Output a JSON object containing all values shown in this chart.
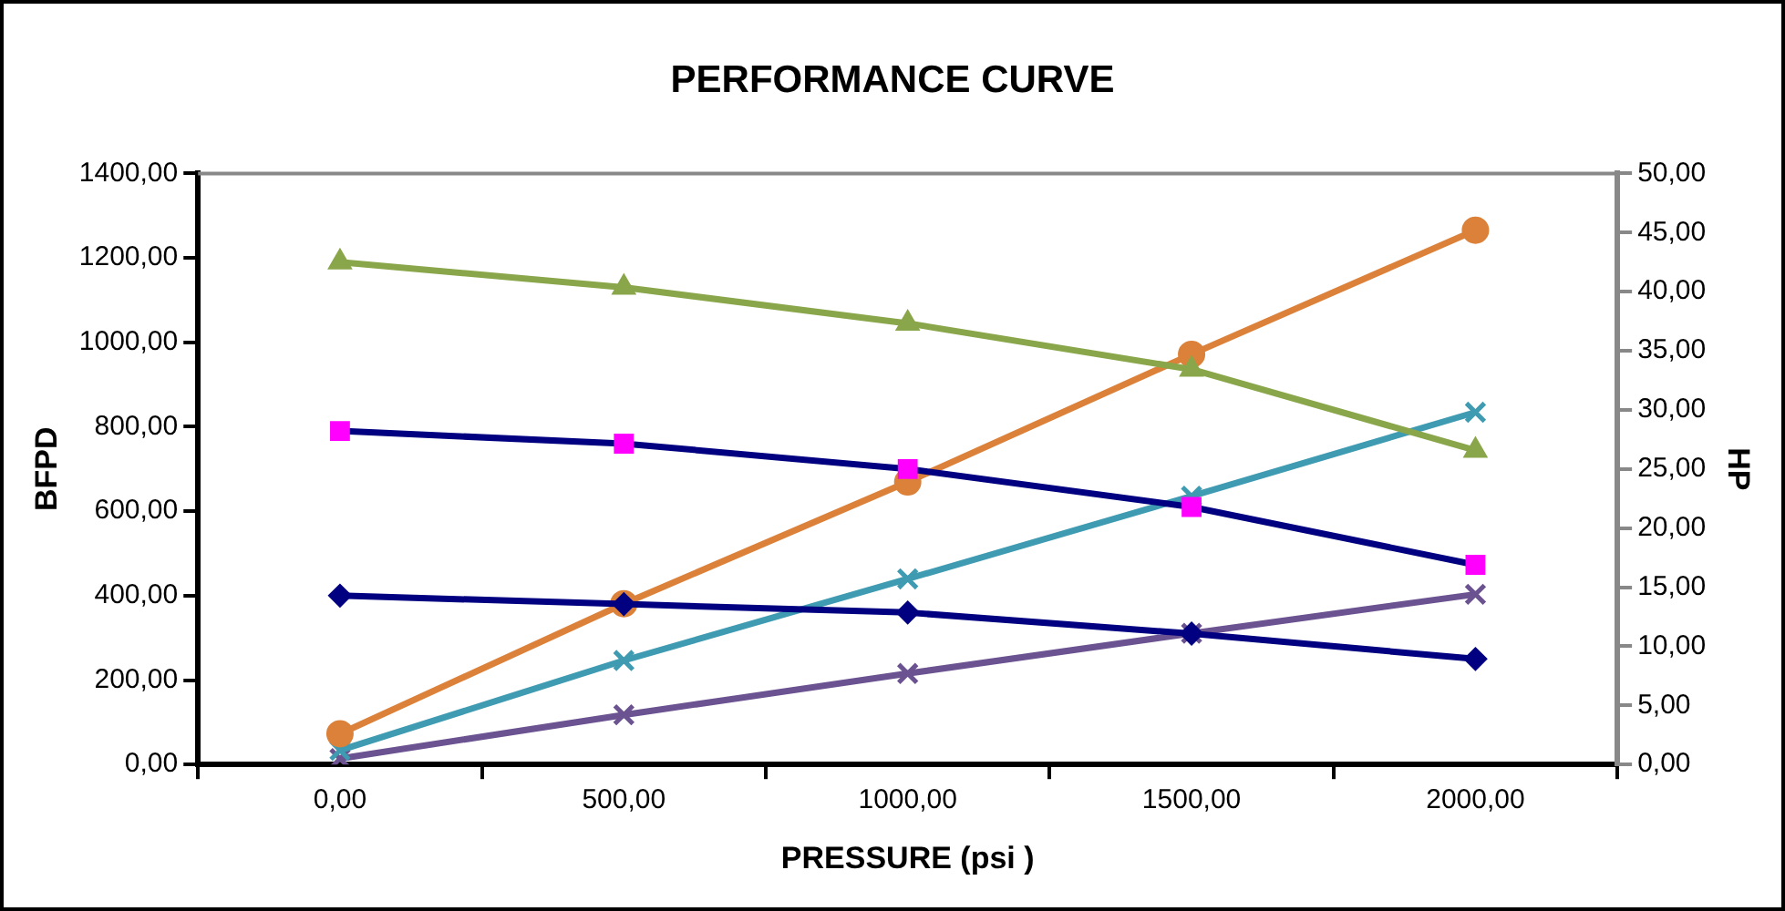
{
  "chart_data": {
    "type": "line",
    "title": "PERFORMANCE CURVE",
    "xlabel": "PRESSURE (psi )",
    "ylabel": "BFPD",
    "y2label": "HP",
    "categories": [
      "0,00",
      "500,00",
      "1000,00",
      "1500,00",
      "2000,00"
    ],
    "series": [
      {
        "color": "#8aa64a",
        "marker": "triangle",
        "values": [
          1190,
          1130,
          1045,
          936,
          744
        ]
      },
      {
        "color": "#000080",
        "colors": [
          "#ff00ff",
          "#ff00ff",
          "#ff00ff",
          "#ff00ff",
          "#ff00ff"
        ],
        "marker": "square",
        "values": [
          790,
          760,
          700,
          610,
          473
        ]
      },
      {
        "color": "#000080",
        "marker": "diamond",
        "values": [
          400,
          380,
          360,
          310,
          250
        ]
      },
      {
        "color": "#dc8139",
        "marker": "circle",
        "axis": "y2",
        "values": [
          2.6,
          13.6,
          23.9,
          34.7,
          45.2
        ]
      },
      {
        "color": "#3f9bb1",
        "marker": "cross",
        "axis": "y2",
        "values": [
          1.2,
          8.8,
          15.7,
          22.7,
          29.8
        ]
      },
      {
        "color": "#6b5290",
        "marker": "cross",
        "axis": "y2",
        "values": [
          0.5,
          4.2,
          7.7,
          11.1,
          14.4
        ]
      }
    ],
    "ylim": [
      0,
      1400
    ],
    "yticks": [
      {
        "value": 0,
        "label": "0,00"
      },
      {
        "value": 200,
        "label": "200,00"
      },
      {
        "value": 400,
        "label": "400,00"
      },
      {
        "value": 600,
        "label": "600,00"
      },
      {
        "value": 800,
        "label": "800,00"
      },
      {
        "value": 1000,
        "label": "1000,00"
      },
      {
        "value": 1200,
        "label": "1200,00"
      },
      {
        "value": 1400,
        "label": "1400,00"
      }
    ],
    "y2lim": [
      0,
      50
    ],
    "y2ticks": [
      {
        "value": 0,
        "label": "0,00"
      },
      {
        "value": 5,
        "label": "5,00"
      },
      {
        "value": 10,
        "label": "10,00"
      },
      {
        "value": 15,
        "label": "15,00"
      },
      {
        "value": 20,
        "label": "20,00"
      },
      {
        "value": 25,
        "label": "25,00"
      },
      {
        "value": 30,
        "label": "30,00"
      },
      {
        "value": 35,
        "label": "35,00"
      },
      {
        "value": 40,
        "label": "40,00"
      },
      {
        "value": 45,
        "label": "45,00"
      },
      {
        "value": 50,
        "label": "50,00"
      }
    ],
    "grid": false,
    "legend": false
  }
}
